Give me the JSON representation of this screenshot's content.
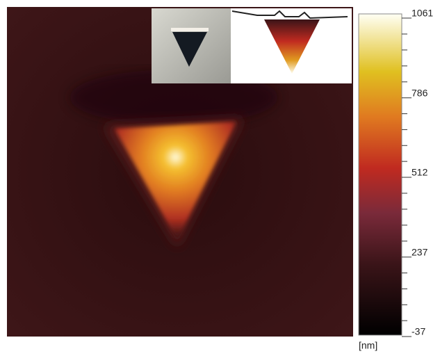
{
  "chart_data": {
    "type": "heatmap",
    "colorbar": {
      "range": [
        -37,
        1061
      ],
      "ticks": [
        -37,
        237,
        512,
        786,
        1061
      ],
      "unit": "[nm]"
    }
  }
}
